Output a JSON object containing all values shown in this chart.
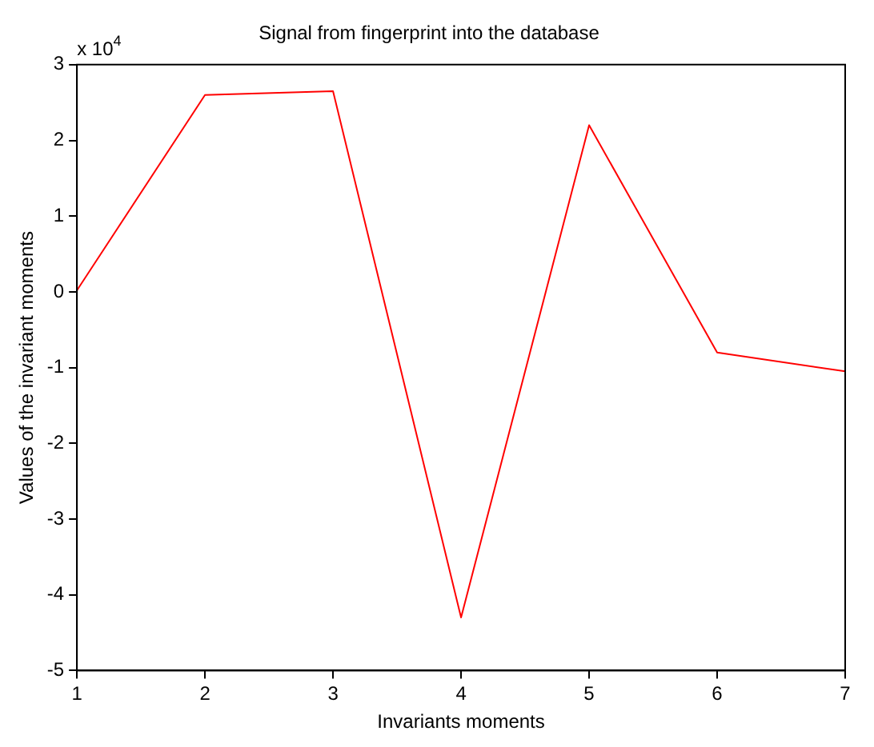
{
  "chart_data": {
    "type": "line",
    "title": "Signal from fingerprint into the database",
    "xlabel": "Invariants moments",
    "ylabel": "Values of the invariant moments",
    "x": [
      1,
      2,
      3,
      4,
      5,
      6,
      7
    ],
    "series": [
      {
        "color": "#ff0000",
        "values": [
          0.02,
          2.6,
          2.65,
          -4.3,
          2.2,
          -0.8,
          -1.05
        ]
      }
    ],
    "xlim": [
      1,
      7
    ],
    "xticks": [
      1,
      2,
      3,
      4,
      5,
      6,
      7
    ],
    "ylim": [
      -5,
      3
    ],
    "yticks": [
      -5,
      -4,
      -3,
      -2,
      -1,
      0,
      1,
      2,
      3
    ],
    "grid": false,
    "legend": false,
    "marker": "none",
    "line_style": "solid",
    "annotations": [
      "x 10$^{4}$"
    ]
  }
}
